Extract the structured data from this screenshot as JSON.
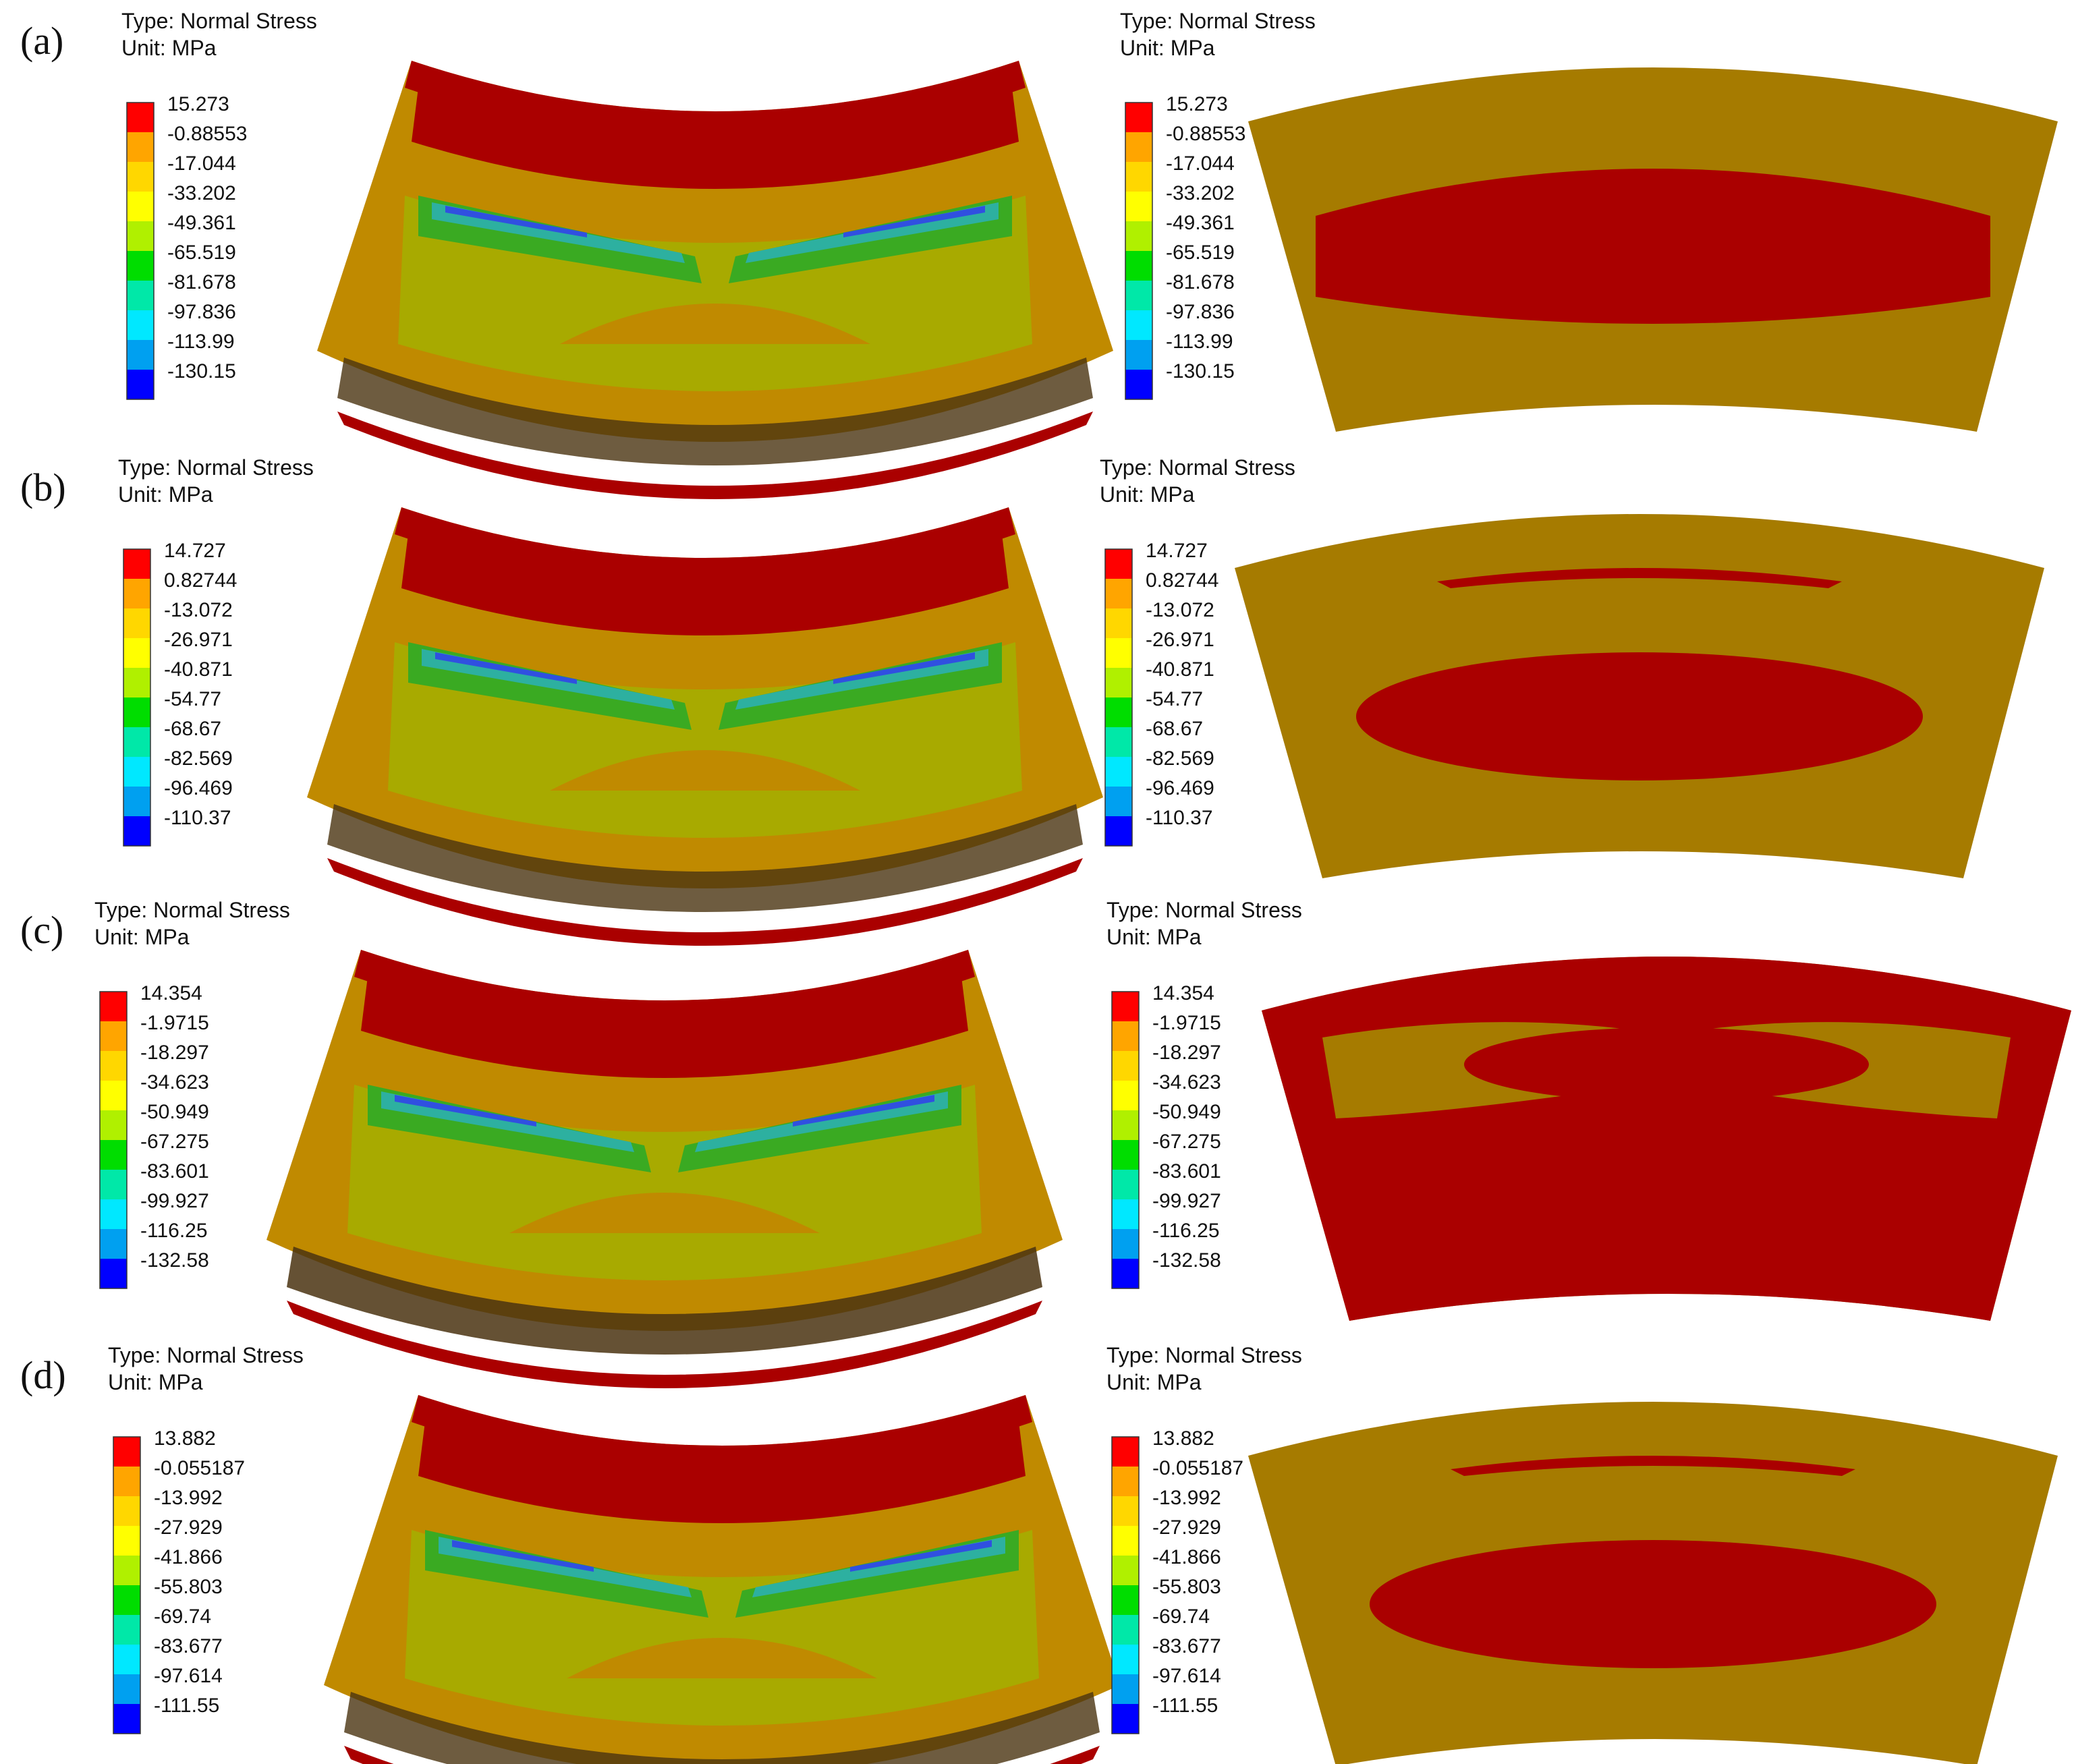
{
  "colors": {
    "bin1": "#FF0000",
    "bin2": "#FFA500",
    "bin3": "#FFD700",
    "bin4": "#FFFF00",
    "bin5": "#B0F000",
    "bin6": "#00DD00",
    "bin7": "#00E8A8",
    "bin8": "#00E8FF",
    "bin9": "#00A0F0",
    "bin10": "#0000FF",
    "fea_red": "#AA0000",
    "fea_bronze": "#A67B00",
    "fea_orange": "#C08A00",
    "fea_yellowgreen": "#A8AA00",
    "fea_green": "#3AAA22",
    "fea_cyan": "#2DB0A0",
    "fea_blue": "#3050E0",
    "fea_dark": "#4A3310"
  },
  "panels": [
    {
      "label": "(a)",
      "left": {
        "type_text": "Type: Normal Stress",
        "unit_text": "Unit: MPa",
        "ticks": [
          "15.273",
          "-0.88553",
          "-17.044",
          "-33.202",
          "-49.361",
          "-65.519",
          "-81.678",
          "-97.836",
          "-113.99",
          "-130.15"
        ]
      },
      "right": {
        "type_text": "Type: Normal Stress",
        "unit_text": "Unit: MPa",
        "ticks": [
          "15.273",
          "-0.88553",
          "-17.044",
          "-33.202",
          "-49.361",
          "-65.519",
          "-81.678",
          "-97.836",
          "-113.99",
          "-130.15"
        ]
      }
    },
    {
      "label": "(b)",
      "left": {
        "type_text": "Type: Normal Stress",
        "unit_text": "Unit: MPa",
        "ticks": [
          "14.727",
          "0.82744",
          "-13.072",
          "-26.971",
          "-40.871",
          "-54.77",
          "-68.67",
          "-82.569",
          "-96.469",
          "-110.37"
        ]
      },
      "right": {
        "type_text": "Type: Normal Stress",
        "unit_text": "Unit: MPa",
        "ticks": [
          "14.727",
          "0.82744",
          "-13.072",
          "-26.971",
          "-40.871",
          "-54.77",
          "-68.67",
          "-82.569",
          "-96.469",
          "-110.37"
        ]
      }
    },
    {
      "label": "(c)",
      "left": {
        "type_text": "Type: Normal Stress",
        "unit_text": "Unit: MPa",
        "ticks": [
          "14.354",
          "-1.9715",
          "-18.297",
          "-34.623",
          "-50.949",
          "-67.275",
          "-83.601",
          "-99.927",
          "-116.25",
          "-132.58"
        ]
      },
      "right": {
        "type_text": "Type: Normal Stress",
        "unit_text": "Unit: MPa",
        "ticks": [
          "14.354",
          "-1.9715",
          "-18.297",
          "-34.623",
          "-50.949",
          "-67.275",
          "-83.601",
          "-99.927",
          "-116.25",
          "-132.58"
        ]
      }
    },
    {
      "label": "(d)",
      "left": {
        "type_text": "Type: Normal Stress",
        "unit_text": "Unit: MPa",
        "ticks": [
          "13.882",
          "-0.055187",
          "-13.992",
          "-27.929",
          "-41.866",
          "-55.803",
          "-69.74",
          "-83.677",
          "-97.614",
          "-111.55"
        ]
      },
      "right": {
        "type_text": "Type: Normal Stress",
        "unit_text": "Unit: MPa",
        "ticks": [
          "13.882",
          "-0.055187",
          "-13.992",
          "-27.929",
          "-41.866",
          "-55.803",
          "-69.74",
          "-83.677",
          "-97.614",
          "-111.55"
        ]
      }
    }
  ]
}
